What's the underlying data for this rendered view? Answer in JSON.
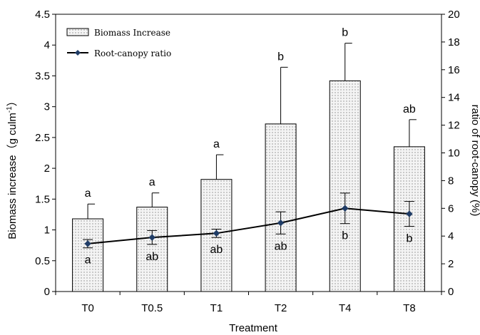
{
  "chart_data": {
    "type": "bar",
    "categories": [
      "T0",
      "T0.5",
      "T1",
      "T2",
      "T4",
      "T8"
    ],
    "xlabel": "Treatment",
    "ylabel": "Biomass increase（g culm",
    "ylabel_sup": "-1",
    "ylabel_close": "）",
    "y2label": "ratio of root-canopy (%)",
    "ylim": [
      0,
      4.5
    ],
    "y2lim": [
      0,
      20
    ],
    "yticks": [
      "0",
      "0.5",
      "1",
      "1.5",
      "2",
      "2.5",
      "3",
      "3.5",
      "4",
      "4.5"
    ],
    "y2ticks": [
      "0",
      "2",
      "4",
      "6",
      "8",
      "10",
      "12",
      "14",
      "16",
      "18",
      "20"
    ],
    "legend_position": "top-left",
    "series": [
      {
        "name": "Biomass Increase",
        "type": "bar",
        "axis": "left",
        "values": [
          1.18,
          1.37,
          1.82,
          2.72,
          3.42,
          2.35
        ],
        "errors": [
          0.24,
          0.23,
          0.4,
          0.92,
          0.61,
          0.44
        ],
        "labels": [
          "a",
          "a",
          "a",
          "b",
          "b",
          "ab"
        ]
      },
      {
        "name": "Root-canopy ratio",
        "type": "line",
        "axis": "right",
        "values": [
          3.45,
          3.9,
          4.2,
          4.95,
          6.0,
          5.6
        ],
        "errors": [
          0.3,
          0.5,
          0.3,
          0.8,
          1.1,
          0.9
        ],
        "labels": [
          "a",
          "ab",
          "ab",
          "ab",
          "b",
          "b"
        ]
      }
    ],
    "colors": {
      "bar_fill": "#f2f2f2",
      "bar_dots": "#8a8a8a",
      "line": "#000000",
      "marker": "#1f3c66"
    }
  }
}
